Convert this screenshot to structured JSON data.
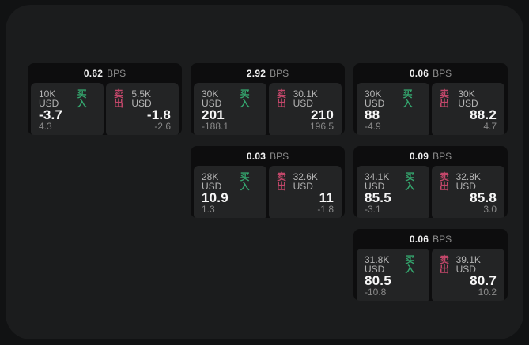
{
  "labels": {
    "bps": "BPS",
    "buy": "买入",
    "sell": "卖出"
  },
  "colors": {
    "buy": "#34a46d",
    "sell": "#c2476a",
    "page_background": "#111213",
    "panel_background": "#1b1c1d",
    "card_background": "#0d0d0e",
    "tile_background": "#232425"
  },
  "cards": [
    {
      "col": 0,
      "row": 0,
      "bps": "0.62",
      "buy": {
        "notional": "10K USD",
        "price": "-3.7",
        "delta": "4.3"
      },
      "sell": {
        "notional": "5.5K USD",
        "price": "-1.8",
        "delta": "-2.6"
      }
    },
    {
      "col": 1,
      "row": 0,
      "bps": "2.92",
      "buy": {
        "notional": "30K USD",
        "price": "201",
        "delta": "-188.1"
      },
      "sell": {
        "notional": "30.1K USD",
        "price": "210",
        "delta": "196.5"
      }
    },
    {
      "col": 2,
      "row": 0,
      "bps": "0.06",
      "buy": {
        "notional": "30K USD",
        "price": "88",
        "delta": "-4.9"
      },
      "sell": {
        "notional": "30K USD",
        "price": "88.2",
        "delta": "4.7"
      }
    },
    {
      "col": 1,
      "row": 1,
      "bps": "0.03",
      "buy": {
        "notional": "28K USD",
        "price": "10.9",
        "delta": "1.3"
      },
      "sell": {
        "notional": "32.6K USD",
        "price": "11",
        "delta": "-1.8"
      }
    },
    {
      "col": 2,
      "row": 1,
      "bps": "0.09",
      "buy": {
        "notional": "34.1K USD",
        "price": "85.5",
        "delta": "-3.1"
      },
      "sell": {
        "notional": "32.8K USD",
        "price": "85.8",
        "delta": "3.0"
      }
    },
    {
      "col": 2,
      "row": 2,
      "bps": "0.06",
      "buy": {
        "notional": "31.8K USD",
        "price": "80.5",
        "delta": "-10.8"
      },
      "sell": {
        "notional": "39.1K USD",
        "price": "80.7",
        "delta": "10.2"
      }
    }
  ]
}
